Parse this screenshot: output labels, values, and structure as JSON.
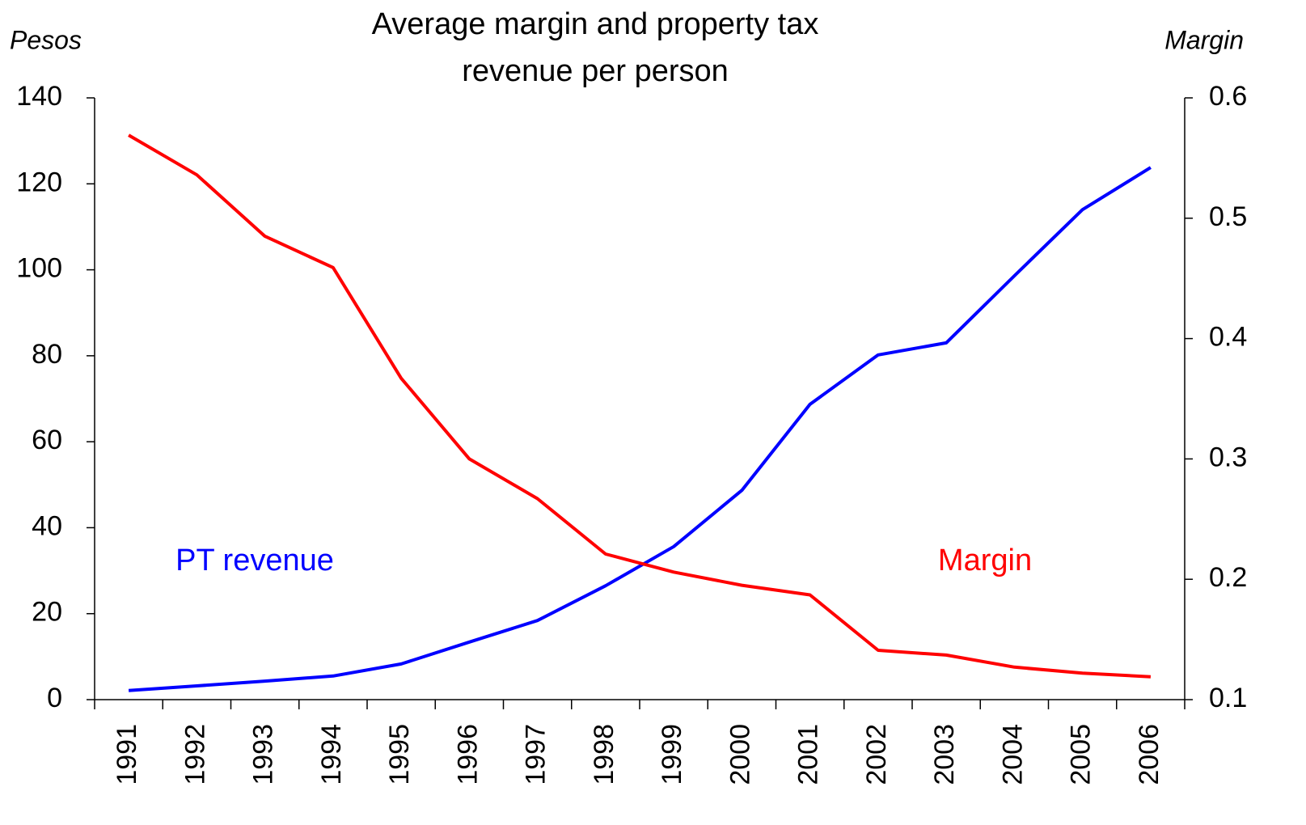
{
  "chart_data": {
    "type": "line",
    "title": [
      "Average margin and property tax",
      "revenue per person"
    ],
    "y_label": "Pesos",
    "y2_label": "Margin",
    "categories": [
      "1991",
      "1992",
      "1993",
      "1994",
      "1995",
      "1996",
      "1997",
      "1998",
      "1999",
      "2000",
      "2001",
      "2002",
      "2003",
      "2004",
      "2005",
      "2006"
    ],
    "series": [
      {
        "name": "PT revenue",
        "color": "#0000ff",
        "values": [
          2.1,
          3.2,
          4.3,
          5.5,
          8.3,
          13.4,
          18.4,
          26.5,
          35.6,
          48.7,
          68.7,
          80.2,
          83,
          98.6,
          114,
          123.8
        ]
      },
      {
        "name": "Margin",
        "color": "#ff0000",
        "axis": "y2",
        "values": [
          0.569,
          0.536,
          0.485,
          0.459,
          0.367,
          0.3,
          0.267,
          0.221,
          0.206,
          0.195,
          0.187,
          0.141,
          0.137,
          0.127,
          0.122,
          0.119
        ]
      }
    ],
    "ylim": [
      0,
      140
    ],
    "yticks": [
      0,
      20,
      40,
      60,
      80,
      100,
      120,
      140
    ],
    "y2lim": [
      0.1,
      0.6
    ],
    "y2ticks": [
      0.1,
      0.2,
      0.3,
      0.4,
      0.5,
      0.6
    ],
    "grid": false
  }
}
